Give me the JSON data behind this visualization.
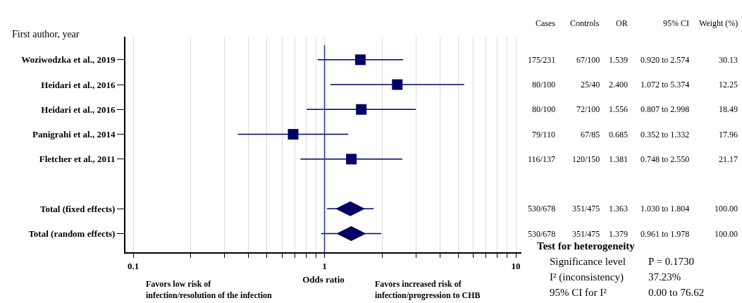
{
  "chart_data": {
    "type": "scatter",
    "orientation": "horizontal",
    "log": "x",
    "grid": "x",
    "xlabel": "Odds ratio",
    "categories": [
      "Woziwodzka et al., 2019",
      "Heidari et al., 2016",
      "Heidari et al., 2016",
      "Panigrahi et al., 2014",
      "Fletcher et al., 2011",
      null,
      "Total (fixed effects)",
      "Total (random effects)"
    ],
    "series": [
      {
        "type": "scatter",
        "marker": "square",
        "color": "#000066",
        "values": [
          1.539,
          2.4,
          1.556,
          0.685,
          1.381,
          null,
          null,
          null
        ],
        "errors": [
          [
            0.92,
            2.574
          ],
          [
            1.072,
            5.374
          ],
          [
            0.807,
            2.998
          ],
          [
            0.352,
            1.332
          ],
          [
            0.748,
            2.55
          ],
          null,
          null,
          null
        ],
        "value_labels": [
          "1.539",
          "2.400",
          "1.556",
          "0.685",
          "1.381",
          null,
          null,
          null
        ]
      },
      {
        "type": "scatter",
        "marker": "diamond",
        "color": "#000066",
        "values": [
          null,
          null,
          null,
          null,
          null,
          null,
          1.363,
          1.379
        ],
        "errors": [
          null,
          null,
          null,
          null,
          null,
          null,
          [
            1.03,
            1.804
          ],
          [
            0.961,
            1.978
          ]
        ]
      }
    ],
    "xlim": [
      0.091,
      10.7
    ],
    "xticks": [
      0.1,
      {
        "value": 0.2,
        "label": null
      },
      {
        "value": 0.3,
        "label": null
      },
      {
        "value": 0.4,
        "label": null
      },
      {
        "value": 0.5,
        "label": null
      },
      {
        "value": 0.6,
        "label": null
      },
      {
        "value": 0.7,
        "label": null
      },
      {
        "value": 0.8,
        "label": null
      },
      {
        "value": 0.9,
        "label": null
      },
      1,
      {
        "value": 2,
        "label": null
      },
      {
        "value": 3,
        "label": null
      },
      {
        "value": 4,
        "label": null
      },
      {
        "value": 5,
        "label": null
      },
      {
        "value": 6,
        "label": null
      },
      {
        "value": 7,
        "label": null
      },
      {
        "value": 8,
        "label": null
      },
      {
        "value": 9,
        "label": null
      },
      10
    ],
    "ref_lines": [
      {
        "axis": "x",
        "value": 1,
        "color": "#2a3a9f"
      }
    ],
    "annotations": [
      "First author, year",
      "Favors low risk of\ninfection/resolution of the infection",
      "Favors increased risk of\ninfection/progression to CHB",
      "Cases",
      "Controls",
      "OR",
      "95% CI",
      "Weight (%)",
      "175/231",
      "67/100",
      "0.920 to 2.574",
      "30.13",
      "80/100",
      "25/40",
      "1.072 to 5.374",
      "12.25",
      "80/100",
      "72/100",
      "0.807 to 2.998",
      "18.49",
      "79/110",
      "67/85",
      "0.352 to 1.332",
      "17.96",
      "116/137",
      "120/150",
      "0.748 to 2.550",
      "21.17",
      "530/678",
      "351/475",
      "1.030 to 1.804",
      "100.00",
      "530/678",
      "351/475",
      "0.961 to 1.978",
      "100.00",
      "Test for heterogeneity",
      "Significance level",
      "P = 0.1730",
      "I² (inconsistency)",
      "37.23%",
      "95% CI for I²",
      "0.00 to 76.62",
      "1.363",
      "1.379"
    ]
  }
}
